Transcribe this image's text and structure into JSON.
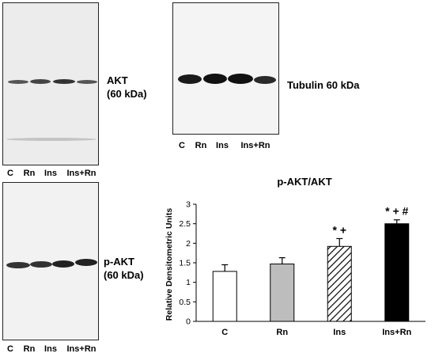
{
  "blots": {
    "akt": {
      "label_line1": "AKT",
      "label_line2": "(60 kDa)",
      "lanes": [
        "C",
        "Rn",
        "Ins",
        "Ins+Rn"
      ]
    },
    "tubulin": {
      "label": "Tubulin 60 kDa",
      "lanes": [
        "C",
        "Rn",
        "Ins",
        "Ins+Rn"
      ]
    },
    "pakt": {
      "label_line1": "p-AKT",
      "label_line2": "(60 kDa)",
      "lanes": [
        "C",
        "Rn",
        "Ins",
        "Ins+Rn"
      ]
    }
  },
  "chart_data": {
    "type": "bar",
    "title": "p-AKT/AKT",
    "ylabel": "Relative Densitometric Units",
    "xlabel": "",
    "categories": [
      "C",
      "Rn",
      "Ins",
      "Ins+Rn"
    ],
    "values": [
      1.28,
      1.47,
      1.92,
      2.5
    ],
    "errors": [
      0.17,
      0.16,
      0.2,
      0.1
    ],
    "annotations": [
      "",
      "",
      "*  +",
      "* + #"
    ],
    "ylim": [
      0,
      3
    ],
    "yticks": [
      "0",
      "0.5",
      "1",
      "1.5",
      "2",
      "2.5",
      "3"
    ],
    "bar_styles": [
      "white",
      "gray",
      "hatched",
      "black"
    ],
    "colors": {
      "gray": "#bdbdbd",
      "black": "#000000",
      "white": "#ffffff"
    },
    "grid": false
  }
}
